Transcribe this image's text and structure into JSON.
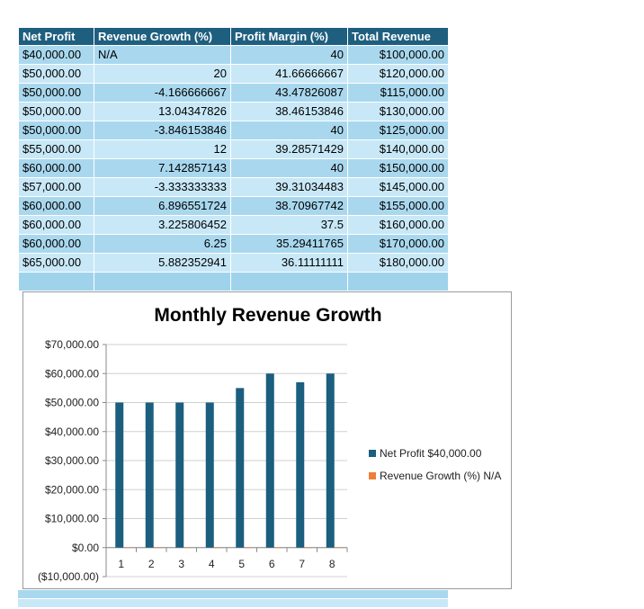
{
  "table": {
    "headers": [
      "Net Profit",
      "Revenue Growth (%)",
      "Profit Margin (%)",
      "Total Revenue"
    ],
    "rows": [
      [
        "$40,000.00",
        "N/A",
        "40",
        "$100,000.00"
      ],
      [
        "$50,000.00",
        "20",
        "41.66666667",
        "$120,000.00"
      ],
      [
        "$50,000.00",
        "-4.166666667",
        "43.47826087",
        "$115,000.00"
      ],
      [
        "$50,000.00",
        "13.04347826",
        "38.46153846",
        "$130,000.00"
      ],
      [
        "$50,000.00",
        "-3.846153846",
        "40",
        "$125,000.00"
      ],
      [
        "$55,000.00",
        "12",
        "39.28571429",
        "$140,000.00"
      ],
      [
        "$60,000.00",
        "7.142857143",
        "40",
        "$150,000.00"
      ],
      [
        "$57,000.00",
        "-3.333333333",
        "39.31034483",
        "$145,000.00"
      ],
      [
        "$60,000.00",
        "6.896551724",
        "38.70967742",
        "$155,000.00"
      ],
      [
        "$60,000.00",
        "3.225806452",
        "37.5",
        "$160,000.00"
      ],
      [
        "$60,000.00",
        "6.25",
        "35.29411765",
        "$170,000.00"
      ],
      [
        "$65,000.00",
        "5.882352941",
        "36.11111111",
        "$180,000.00"
      ]
    ]
  },
  "chart_data": {
    "type": "bar",
    "title": "Monthly Revenue Growth",
    "categories": [
      "1",
      "2",
      "3",
      "4",
      "5",
      "6",
      "7",
      "8"
    ],
    "series": [
      {
        "name": "Net Profit $40,000.00",
        "values": [
          50000,
          50000,
          50000,
          50000,
          55000,
          60000,
          57000,
          60000
        ],
        "color": "#1b5e7e"
      },
      {
        "name": "Revenue Growth (%) N/A",
        "values": [
          20,
          -4.166666667,
          13.04347826,
          -3.846153846,
          12,
          7.142857143,
          -3.333333333,
          6.896551724
        ],
        "color": "#f07d3a"
      }
    ],
    "ylim": [
      -10000,
      70000
    ],
    "yticks": [
      -10000,
      0,
      10000,
      20000,
      30000,
      40000,
      50000,
      60000,
      70000
    ],
    "ytick_labels": [
      "($10,000.00)",
      "$0.00",
      "$10,000.00",
      "$20,000.00",
      "$30,000.00",
      "$40,000.00",
      "$50,000.00",
      "$60,000.00",
      "$70,000.00"
    ],
    "grid": true,
    "legend": "right"
  }
}
